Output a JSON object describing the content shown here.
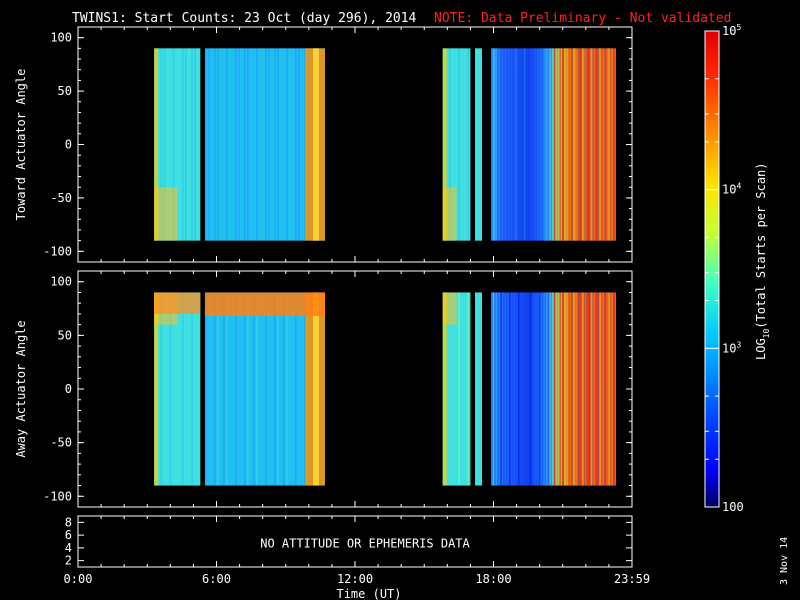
{
  "title": {
    "main": "TWINS1: Start Counts: 23 Oct (day 296), 2014",
    "note": "NOTE: Data Preliminary - Not validated"
  },
  "footer": {
    "date_stamp": "3 Nov 14"
  },
  "colorbar": {
    "label": "LOG10(Total Starts per Scan)",
    "label_base": "LOG",
    "label_sub": "10",
    "label_rest": "(Total Starts per Scan)",
    "ticks": [
      {
        "value": 100000,
        "label": "10",
        "exp": "5"
      },
      {
        "value": 10000,
        "label": "10",
        "exp": "4"
      },
      {
        "value": 1000,
        "label": "10",
        "exp": "3"
      },
      {
        "value": 100,
        "label": "100",
        "exp": ""
      }
    ],
    "range": [
      100,
      100000
    ],
    "scale": "log",
    "colormap": [
      "#000080",
      "#0000ff",
      "#0080ff",
      "#00e0ff",
      "#40ffc0",
      "#c0ff40",
      "#ffe000",
      "#ff8000",
      "#ff2000",
      "#e00000"
    ]
  },
  "chart_data": [
    {
      "type": "heatmap",
      "ylabel": "Toward Actuator Angle",
      "ylim": [
        -110,
        110
      ],
      "yticks": [
        100,
        50,
        0,
        -50,
        -100
      ],
      "xlim": [
        0,
        24
      ],
      "data_blocks": [
        {
          "x_start": 3.3,
          "x_end": 5.3,
          "y_start": -90,
          "y_end": 90,
          "dominant_log_value": 3.3
        },
        {
          "x_start": 5.5,
          "x_end": 10.7,
          "y_start": -90,
          "y_end": 90,
          "dominant_log_value": 3.1
        },
        {
          "x_start": 15.8,
          "x_end": 17.0,
          "y_start": -90,
          "y_end": 90,
          "dominant_log_value": 3.4
        },
        {
          "x_start": 17.2,
          "x_end": 17.5,
          "y_start": -90,
          "y_end": 90,
          "dominant_log_value": 3.4
        },
        {
          "x_start": 17.9,
          "x_end": 23.3,
          "y_start": -90,
          "y_end": 90,
          "dominant_log_value": 2.8
        }
      ]
    },
    {
      "type": "heatmap",
      "ylabel": "Away Actuator Angle",
      "ylim": [
        -110,
        110
      ],
      "yticks": [
        100,
        50,
        0,
        -50,
        -100
      ],
      "xlim": [
        0,
        24
      ],
      "data_blocks": [
        {
          "x_start": 3.3,
          "x_end": 5.3,
          "y_start": -90,
          "y_end": 90,
          "dominant_log_value": 3.4
        },
        {
          "x_start": 5.5,
          "x_end": 10.7,
          "y_start": -90,
          "y_end": 90,
          "dominant_log_value": 3.2
        },
        {
          "x_start": 15.8,
          "x_end": 17.0,
          "y_start": -90,
          "y_end": 90,
          "dominant_log_value": 3.5
        },
        {
          "x_start": 17.2,
          "x_end": 17.5,
          "y_start": -90,
          "y_end": 90,
          "dominant_log_value": 3.5
        },
        {
          "x_start": 17.9,
          "x_end": 23.3,
          "y_start": -90,
          "y_end": 90,
          "dominant_log_value": 2.7
        }
      ]
    },
    {
      "type": "table",
      "ylim": [
        1,
        9
      ],
      "yticks": [
        8,
        6,
        4,
        2
      ],
      "message": "NO ATTITUDE OR EPHEMERIS DATA"
    }
  ],
  "x_axis": {
    "label": "Time (UT)",
    "range": [
      0,
      24
    ],
    "ticks": [
      {
        "value": 0,
        "label": "0:00"
      },
      {
        "value": 6,
        "label": "6:00"
      },
      {
        "value": 12,
        "label": "12:00"
      },
      {
        "value": 18,
        "label": "18:00"
      },
      {
        "value": 24,
        "label": "23:59"
      }
    ]
  }
}
